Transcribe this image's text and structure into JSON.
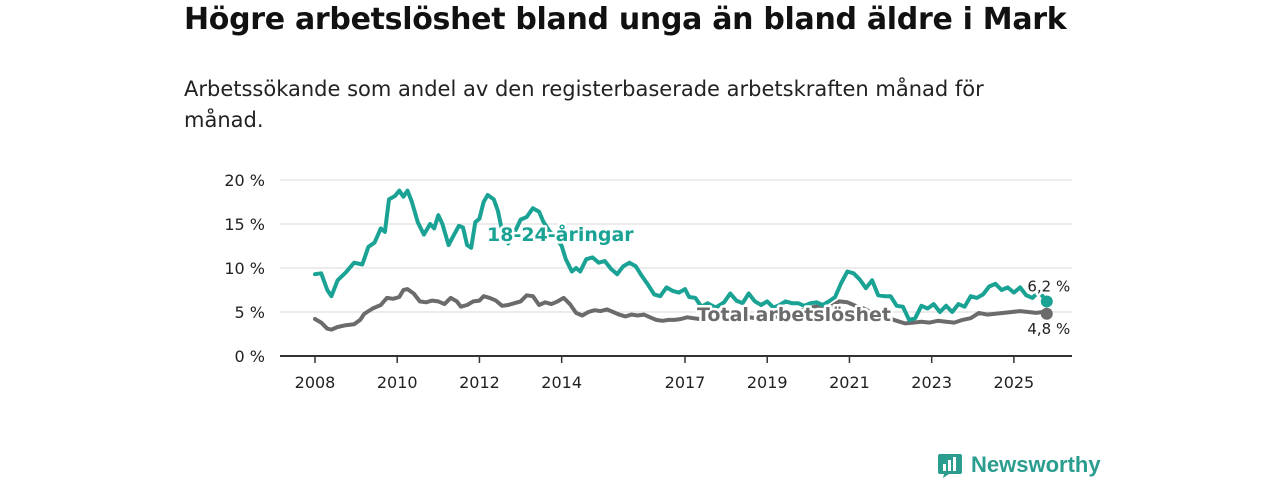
{
  "title": "Högre arbetslöshet bland unga än bland äldre i Mark",
  "subtitle": "Arbetssökande som andel av den registerbaserade arbetskraften månad för månad.",
  "brand": "Newsworthy",
  "colors": {
    "youth": "#1aa394",
    "total": "#6b6b6b",
    "grid": "#d9d9d9",
    "axis": "#333333",
    "brand": "#2a9d8f"
  },
  "chart_data": {
    "type": "line",
    "title": "Högre arbetslöshet bland unga än bland äldre i Mark",
    "xlabel": "",
    "ylabel": "",
    "xlim": [
      2008,
      2026
    ],
    "ylim": [
      0,
      20
    ],
    "x_ticks": [
      2008,
      2010,
      2012,
      2014,
      2017,
      2019,
      2021,
      2023,
      2025
    ],
    "x_tick_labels": [
      "2008",
      "2010",
      "2012",
      "2014",
      "2017",
      "2019",
      "2021",
      "2023",
      "2025"
    ],
    "y_ticks": [
      0,
      5,
      10,
      15,
      20
    ],
    "y_tick_labels": [
      "0 %",
      "5 %",
      "10 %",
      "15 %",
      "20 %"
    ],
    "series": [
      {
        "name": "18-24-åringar",
        "label": "18-24-åringar",
        "end_label": "6,2 %",
        "points": [
          [
            2008.0,
            9.3
          ],
          [
            2008.15,
            9.4
          ],
          [
            2008.3,
            7.5
          ],
          [
            2008.4,
            6.8
          ],
          [
            2008.55,
            8.6
          ],
          [
            2008.75,
            9.5
          ],
          [
            2008.95,
            10.6
          ],
          [
            2009.15,
            10.4
          ],
          [
            2009.3,
            12.4
          ],
          [
            2009.45,
            12.9
          ],
          [
            2009.6,
            14.5
          ],
          [
            2009.7,
            14.1
          ],
          [
            2009.8,
            17.8
          ],
          [
            2009.95,
            18.2
          ],
          [
            2010.05,
            18.8
          ],
          [
            2010.15,
            18.1
          ],
          [
            2010.25,
            18.8
          ],
          [
            2010.35,
            17.6
          ],
          [
            2010.5,
            15.2
          ],
          [
            2010.65,
            13.8
          ],
          [
            2010.8,
            15.0
          ],
          [
            2010.9,
            14.5
          ],
          [
            2011.0,
            16.0
          ],
          [
            2011.1,
            15.0
          ],
          [
            2011.25,
            12.6
          ],
          [
            2011.35,
            13.5
          ],
          [
            2011.5,
            14.8
          ],
          [
            2011.6,
            14.6
          ],
          [
            2011.7,
            12.6
          ],
          [
            2011.8,
            12.3
          ],
          [
            2011.9,
            15.2
          ],
          [
            2012.0,
            15.6
          ],
          [
            2012.1,
            17.5
          ],
          [
            2012.2,
            18.3
          ],
          [
            2012.35,
            17.8
          ],
          [
            2012.45,
            16.5
          ],
          [
            2012.55,
            14.2
          ],
          [
            2012.7,
            12.8
          ],
          [
            2012.85,
            14.0
          ],
          [
            2013.0,
            15.5
          ],
          [
            2013.15,
            15.8
          ],
          [
            2013.3,
            16.8
          ],
          [
            2013.45,
            16.4
          ],
          [
            2013.55,
            15.3
          ],
          [
            2013.7,
            14.2
          ],
          [
            2013.85,
            13.5
          ],
          [
            2014.0,
            12.5
          ],
          [
            2014.1,
            11.0
          ],
          [
            2014.25,
            9.6
          ],
          [
            2014.35,
            10.0
          ],
          [
            2014.45,
            9.6
          ],
          [
            2014.6,
            11.0
          ],
          [
            2014.75,
            11.2
          ],
          [
            2014.9,
            10.6
          ],
          [
            2015.05,
            10.8
          ],
          [
            2015.2,
            9.9
          ],
          [
            2015.35,
            9.3
          ],
          [
            2015.5,
            10.2
          ],
          [
            2015.65,
            10.6
          ],
          [
            2015.8,
            10.2
          ],
          [
            2015.95,
            9.1
          ],
          [
            2016.1,
            8.1
          ],
          [
            2016.25,
            7.0
          ],
          [
            2016.4,
            6.8
          ],
          [
            2016.55,
            7.8
          ],
          [
            2016.7,
            7.4
          ],
          [
            2016.85,
            7.2
          ],
          [
            2017.0,
            7.6
          ],
          [
            2017.1,
            6.7
          ],
          [
            2017.25,
            6.6
          ],
          [
            2017.4,
            5.6
          ],
          [
            2017.55,
            6.0
          ],
          [
            2017.75,
            5.5
          ],
          [
            2017.95,
            6.1
          ],
          [
            2018.1,
            7.1
          ],
          [
            2018.25,
            6.3
          ],
          [
            2018.4,
            6.0
          ],
          [
            2018.55,
            7.1
          ],
          [
            2018.7,
            6.2
          ],
          [
            2018.85,
            5.8
          ],
          [
            2019.0,
            6.2
          ],
          [
            2019.15,
            5.5
          ],
          [
            2019.3,
            5.8
          ],
          [
            2019.45,
            6.2
          ],
          [
            2019.6,
            6.0
          ],
          [
            2019.75,
            6.0
          ],
          [
            2019.9,
            5.7
          ],
          [
            2020.05,
            6.0
          ],
          [
            2020.2,
            6.1
          ],
          [
            2020.35,
            5.8
          ],
          [
            2020.5,
            6.2
          ],
          [
            2020.65,
            6.7
          ],
          [
            2020.8,
            8.3
          ],
          [
            2020.95,
            9.6
          ],
          [
            2021.1,
            9.4
          ],
          [
            2021.25,
            8.7
          ],
          [
            2021.4,
            7.7
          ],
          [
            2021.55,
            8.6
          ],
          [
            2021.7,
            6.9
          ],
          [
            2021.85,
            6.8
          ],
          [
            2022.0,
            6.8
          ],
          [
            2022.15,
            5.7
          ],
          [
            2022.3,
            5.6
          ],
          [
            2022.45,
            4.1
          ],
          [
            2022.6,
            4.3
          ],
          [
            2022.75,
            5.7
          ],
          [
            2022.9,
            5.4
          ],
          [
            2023.05,
            5.9
          ],
          [
            2023.2,
            5.0
          ],
          [
            2023.35,
            5.7
          ],
          [
            2023.5,
            5.0
          ],
          [
            2023.65,
            5.9
          ],
          [
            2023.8,
            5.6
          ],
          [
            2023.95,
            6.8
          ],
          [
            2024.1,
            6.6
          ],
          [
            2024.25,
            7.0
          ],
          [
            2024.4,
            7.9
          ],
          [
            2024.55,
            8.2
          ],
          [
            2024.7,
            7.5
          ],
          [
            2024.85,
            7.8
          ],
          [
            2025.0,
            7.2
          ],
          [
            2025.15,
            7.8
          ],
          [
            2025.3,
            6.9
          ],
          [
            2025.45,
            6.6
          ],
          [
            2025.6,
            7.3
          ],
          [
            2025.7,
            6.8
          ],
          [
            2025.8,
            6.2
          ]
        ]
      },
      {
        "name": "Total arbetslöshet",
        "label": "Total arbetslöshet",
        "end_label": "4,8 %",
        "points": [
          [
            2008.0,
            4.2
          ],
          [
            2008.15,
            3.8
          ],
          [
            2008.3,
            3.1
          ],
          [
            2008.4,
            3.0
          ],
          [
            2008.55,
            3.3
          ],
          [
            2008.75,
            3.5
          ],
          [
            2008.95,
            3.6
          ],
          [
            2009.1,
            4.1
          ],
          [
            2009.2,
            4.8
          ],
          [
            2009.4,
            5.4
          ],
          [
            2009.6,
            5.8
          ],
          [
            2009.75,
            6.6
          ],
          [
            2009.9,
            6.5
          ],
          [
            2010.05,
            6.7
          ],
          [
            2010.15,
            7.5
          ],
          [
            2010.25,
            7.6
          ],
          [
            2010.4,
            7.1
          ],
          [
            2010.55,
            6.2
          ],
          [
            2010.7,
            6.1
          ],
          [
            2010.85,
            6.3
          ],
          [
            2011.0,
            6.2
          ],
          [
            2011.15,
            5.9
          ],
          [
            2011.3,
            6.6
          ],
          [
            2011.45,
            6.2
          ],
          [
            2011.55,
            5.6
          ],
          [
            2011.7,
            5.8
          ],
          [
            2011.85,
            6.2
          ],
          [
            2012.0,
            6.3
          ],
          [
            2012.1,
            6.8
          ],
          [
            2012.25,
            6.6
          ],
          [
            2012.4,
            6.3
          ],
          [
            2012.55,
            5.7
          ],
          [
            2012.7,
            5.8
          ],
          [
            2012.85,
            6.0
          ],
          [
            2013.0,
            6.2
          ],
          [
            2013.15,
            6.9
          ],
          [
            2013.3,
            6.8
          ],
          [
            2013.45,
            5.8
          ],
          [
            2013.6,
            6.1
          ],
          [
            2013.75,
            5.9
          ],
          [
            2013.9,
            6.2
          ],
          [
            2014.05,
            6.6
          ],
          [
            2014.2,
            5.9
          ],
          [
            2014.35,
            4.9
          ],
          [
            2014.5,
            4.6
          ],
          [
            2014.65,
            5.0
          ],
          [
            2014.8,
            5.2
          ],
          [
            2014.95,
            5.1
          ],
          [
            2015.1,
            5.3
          ],
          [
            2015.25,
            5.0
          ],
          [
            2015.4,
            4.7
          ],
          [
            2015.55,
            4.5
          ],
          [
            2015.7,
            4.7
          ],
          [
            2015.85,
            4.6
          ],
          [
            2016.0,
            4.7
          ],
          [
            2016.15,
            4.4
          ],
          [
            2016.3,
            4.1
          ],
          [
            2016.45,
            4.0
          ],
          [
            2016.6,
            4.1
          ],
          [
            2016.75,
            4.1
          ],
          [
            2016.9,
            4.2
          ],
          [
            2017.05,
            4.4
          ],
          [
            2017.2,
            4.3
          ],
          [
            2017.35,
            4.2
          ],
          [
            2017.55,
            4.2
          ],
          [
            2017.75,
            4.3
          ],
          [
            2017.95,
            4.6
          ],
          [
            2018.15,
            4.5
          ],
          [
            2018.35,
            4.7
          ],
          [
            2018.55,
            4.4
          ],
          [
            2018.75,
            4.3
          ],
          [
            2018.95,
            4.6
          ],
          [
            2019.15,
            4.4
          ],
          [
            2019.35,
            4.6
          ],
          [
            2019.55,
            4.8
          ],
          [
            2019.75,
            5.1
          ],
          [
            2019.95,
            5.3
          ],
          [
            2020.15,
            5.6
          ],
          [
            2020.35,
            5.7
          ],
          [
            2020.55,
            5.6
          ],
          [
            2020.75,
            6.2
          ],
          [
            2020.95,
            6.1
          ],
          [
            2021.15,
            5.7
          ],
          [
            2021.35,
            5.4
          ],
          [
            2021.55,
            4.9
          ],
          [
            2021.75,
            4.6
          ],
          [
            2021.95,
            4.3
          ],
          [
            2022.15,
            4.0
          ],
          [
            2022.35,
            3.7
          ],
          [
            2022.55,
            3.8
          ],
          [
            2022.75,
            3.9
          ],
          [
            2022.95,
            3.8
          ],
          [
            2023.15,
            4.0
          ],
          [
            2023.35,
            3.9
          ],
          [
            2023.55,
            3.8
          ],
          [
            2023.75,
            4.1
          ],
          [
            2023.95,
            4.3
          ],
          [
            2024.15,
            4.9
          ],
          [
            2024.35,
            4.7
          ],
          [
            2024.55,
            4.8
          ],
          [
            2024.75,
            4.9
          ],
          [
            2024.95,
            5.0
          ],
          [
            2025.15,
            5.1
          ],
          [
            2025.35,
            5.0
          ],
          [
            2025.55,
            4.9
          ],
          [
            2025.7,
            5.0
          ],
          [
            2025.8,
            4.8
          ]
        ]
      }
    ]
  }
}
